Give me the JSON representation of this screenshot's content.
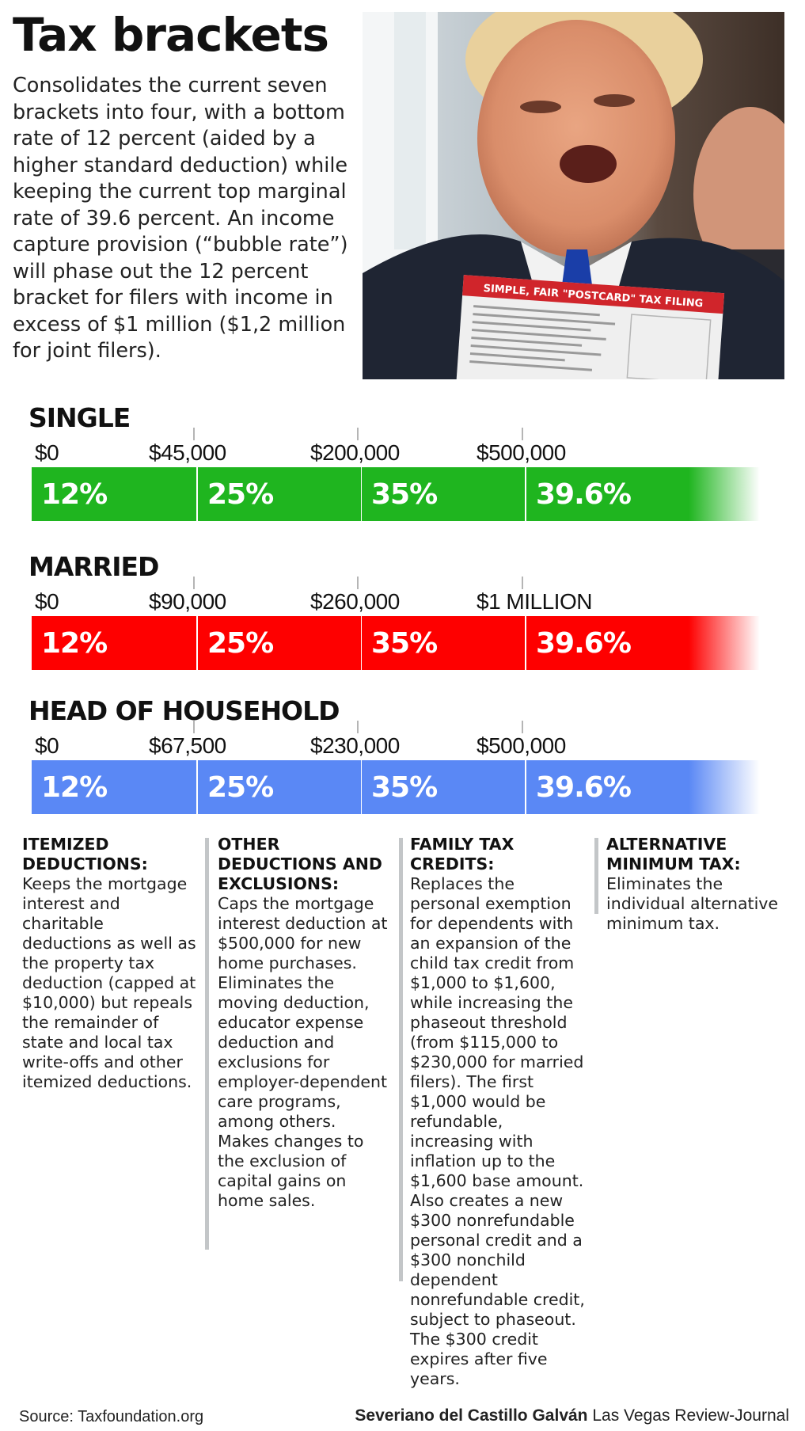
{
  "header": {
    "title": "Tax brackets",
    "intro": "Consolidates the current seven brackets into four, with a bottom rate of 12 percent (aided by a higher standard deduction) while keeping the current top marginal rate of 39.6 percent. An income capture provision (“bubble rate”) will phase out the 12 percent bracket for filers with income in excess of $1 million ($1,2 million for joint filers)."
  },
  "photo": {
    "card_heading": "SIMPLE, FAIR \"POSTCARD\" TAX FILING"
  },
  "brackets": [
    {
      "name": "SINGLE",
      "color": "#1fb51f",
      "thresholds": [
        "$0",
        "$45,000",
        "$200,000",
        "$500,000"
      ],
      "rates": [
        "12%",
        "25%",
        "35%",
        "39.6%"
      ]
    },
    {
      "name": "MARRIED",
      "color": "#fe0000",
      "thresholds": [
        "$0",
        "$90,000",
        "$260,000",
        "$1 MILLION"
      ],
      "rates": [
        "12%",
        "25%",
        "35%",
        "39.6%"
      ]
    },
    {
      "name": "HEAD OF HOUSEHOLD",
      "color": "#5a88f5",
      "thresholds": [
        "$0",
        "$67,500",
        "$230,000",
        "$500,000"
      ],
      "rates": [
        "12%",
        "25%",
        "35%",
        "39.6%"
      ]
    }
  ],
  "columns": [
    {
      "heading": "ITEMIZED DEDUCTIONS:",
      "body": "Keeps the mortgage interest and charitable deductions as well as the property tax deduction (capped at $10,000) but repeals the remainder of state and local tax write-offs and other itemized deductions."
    },
    {
      "heading": "OTHER DEDUCTIONS AND EXCLUSIONS:",
      "body": "Caps the mortgage interest deduction at $500,000 for new home purchases. Eliminates the moving deduction, educator expense deduction and exclusions for employer-dependent care programs, among others. Makes changes to the exclusion of capital gains on home sales."
    },
    {
      "heading": "FAMILY TAX CREDITS:",
      "body": "Replaces the personal exemption for dependents with an expansion of the child tax credit from $1,000 to $1,600, while increasing the phaseout threshold (from $115,000 to $230,000 for married filers). The first $1,000 would be refundable, increasing with inflation up to the $1,600 base amount. Also creates a new $300 nonrefundable personal credit and a $300 nonchild dependent nonrefundable credit, subject to phaseout. The $300 credit expires after five years."
    },
    {
      "heading": "ALTERNATIVE MINIMUM TAX:",
      "body": "Eliminates the individual alternative minimum tax."
    }
  ],
  "footer": {
    "source": "Source: Taxfoundation.org",
    "credit_name": "Severiano del Castillo Galván",
    "credit_org": "Las Vegas Review-Journal"
  }
}
